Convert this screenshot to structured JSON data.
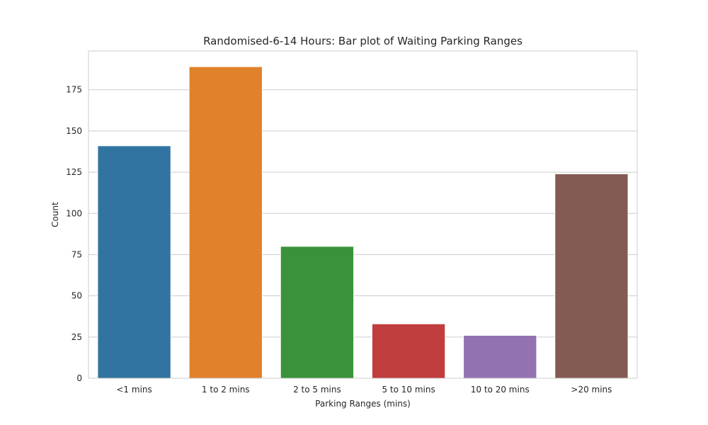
{
  "chart_data": {
    "type": "bar",
    "title": "Randomised-6-14 Hours: Bar plot of Waiting Parking Ranges",
    "xlabel": "Parking Ranges (mins)",
    "ylabel": "Count",
    "categories": [
      "<1 mins",
      "1 to 2 mins",
      "2 to 5 mins",
      "5 to 10 mins",
      "10 to 20 mins",
      ">20 mins"
    ],
    "values": [
      141,
      189,
      80,
      33,
      26,
      124
    ],
    "colors": [
      "#3274a1",
      "#e1812c",
      "#3a923a",
      "#c03d3e",
      "#9372b2",
      "#845b53"
    ],
    "ylim": [
      0,
      198.5
    ],
    "yticks": [
      0,
      25,
      50,
      75,
      100,
      125,
      150,
      175
    ],
    "grid": true,
    "legend": "none"
  }
}
